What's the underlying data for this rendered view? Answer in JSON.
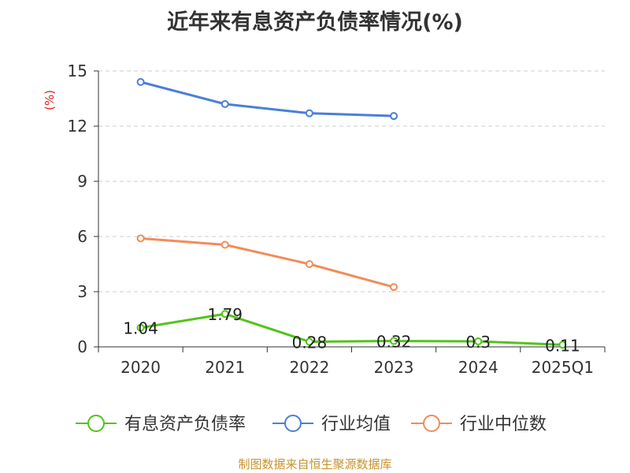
{
  "source_note": "制图数据来自恒生聚源数据库",
  "chart_data": {
    "type": "line",
    "title": "近年来有息资产负债率情况(%)",
    "ylabel": "(%)",
    "categories": [
      "2020",
      "2021",
      "2022",
      "2023",
      "2024",
      "2025Q1"
    ],
    "ylim": [
      0,
      15
    ],
    "yticks": [
      0,
      3,
      6,
      9,
      12,
      15
    ],
    "grid": true,
    "legend_position": "bottom",
    "series": [
      {
        "name": "有息资产负债率",
        "color": "#52c41a",
        "values": [
          1.04,
          1.79,
          0.28,
          0.32,
          0.3,
          0.11
        ],
        "labels": true
      },
      {
        "name": "行业均值",
        "color": "#4a7fd8",
        "values": [
          14.4,
          13.2,
          12.7,
          12.55,
          null,
          null
        ],
        "labels": false
      },
      {
        "name": "行业中位数",
        "color": "#f28c5a",
        "values": [
          5.9,
          5.55,
          4.5,
          3.25,
          null,
          null
        ],
        "labels": false
      }
    ]
  }
}
